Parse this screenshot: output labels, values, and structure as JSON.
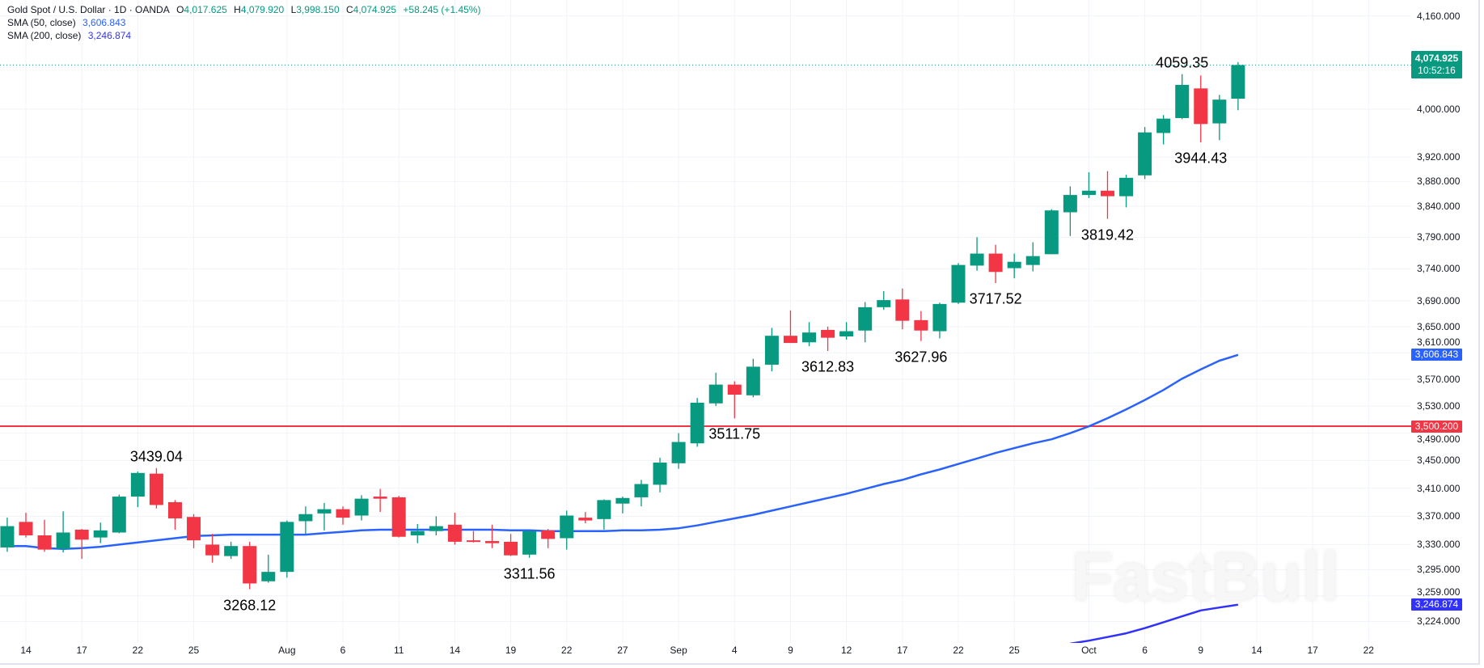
{
  "header": {
    "title": "Gold Spot / U.S. Dollar · 1D · OANDA",
    "open_label": "O",
    "open": "4,017.625",
    "high_label": "H",
    "high": "4,079.920",
    "low_label": "L",
    "low": "3,998.150",
    "close_label": "C",
    "close": "4,074.925",
    "change": "+58.245 (+1.45%)",
    "sma50_label": "SMA (50, close)",
    "sma50_value": "3,606.843",
    "sma200_label": "SMA (200, close)",
    "sma200_value": "3,246.874"
  },
  "watermark": "FastBull",
  "badges": {
    "last_price": "4,074.925",
    "countdown": "10:52:16",
    "sma50": "3,606.843",
    "hline": "3,500.200",
    "sma200": "3,246.874"
  },
  "colors": {
    "up": "#089981",
    "down": "#f23645",
    "sma50": "#2962ff",
    "sma200": "#3131ff",
    "hline": "#f23645",
    "grid": "#f0f3fa"
  },
  "chart_data": {
    "type": "candlestick",
    "y_scale": "log",
    "ylim": [
      3195,
      4188
    ],
    "grid": true,
    "y_ticks": [
      "4,160.000",
      "4,000.000",
      "3,920.000",
      "3,880.000",
      "3,840.000",
      "3,790.000",
      "3,740.000",
      "3,690.000",
      "3,650.000",
      "3,610.000",
      "3,570.000",
      "3,530.000",
      "3,490.000",
      "3,450.000",
      "3,410.000",
      "3,370.000",
      "3,330.000",
      "3,295.000",
      "3,259.000",
      "3,224.000"
    ],
    "x_ticks": [
      {
        "label": "14",
        "date": "2025-07-14"
      },
      {
        "label": "17",
        "date": "2025-07-17"
      },
      {
        "label": "22",
        "date": "2025-07-22"
      },
      {
        "label": "25",
        "date": "2025-07-25"
      },
      {
        "label": "Aug",
        "date": "2025-08-01"
      },
      {
        "label": "6",
        "date": "2025-08-06"
      },
      {
        "label": "11",
        "date": "2025-08-11"
      },
      {
        "label": "14",
        "date": "2025-08-14"
      },
      {
        "label": "19",
        "date": "2025-08-19"
      },
      {
        "label": "22",
        "date": "2025-08-22"
      },
      {
        "label": "27",
        "date": "2025-08-27"
      },
      {
        "label": "Sep",
        "date": "2025-09-01"
      },
      {
        "label": "4",
        "date": "2025-09-04"
      },
      {
        "label": "9",
        "date": "2025-09-09"
      },
      {
        "label": "12",
        "date": "2025-09-12"
      },
      {
        "label": "17",
        "date": "2025-09-17"
      },
      {
        "label": "22",
        "date": "2025-09-22"
      },
      {
        "label": "25",
        "date": "2025-09-25"
      },
      {
        "label": "Oct",
        "date": "2025-10-01"
      },
      {
        "label": "6",
        "date": "2025-10-06"
      },
      {
        "label": "9",
        "date": "2025-10-09"
      },
      {
        "label": "14",
        "date": "2025-10-14"
      },
      {
        "label": "17",
        "date": "2025-10-17"
      },
      {
        "label": "22",
        "date": "2025-10-22"
      }
    ],
    "candles_columns": [
      "date",
      "open",
      "high",
      "low",
      "close"
    ],
    "candles": [
      [
        "2025-07-11",
        3326,
        3368,
        3320,
        3356
      ],
      [
        "2025-07-14",
        3362,
        3375,
        3340,
        3343
      ],
      [
        "2025-07-15",
        3343,
        3365,
        3320,
        3323
      ],
      [
        "2025-07-16",
        3324,
        3377,
        3319,
        3347
      ],
      [
        "2025-07-17",
        3351,
        3352,
        3310,
        3337
      ],
      [
        "2025-07-18",
        3340,
        3361,
        3332,
        3350
      ],
      [
        "2025-07-21",
        3347,
        3401,
        3346,
        3398
      ],
      [
        "2025-07-22",
        3398,
        3434,
        3383,
        3432
      ],
      [
        "2025-07-23",
        3431,
        3439.04,
        3381,
        3386
      ],
      [
        "2025-07-24",
        3390,
        3393,
        3351,
        3367
      ],
      [
        "2025-07-25",
        3369,
        3373,
        3325,
        3336
      ],
      [
        "2025-07-28",
        3330,
        3345,
        3305,
        3315
      ],
      [
        "2025-07-29",
        3314,
        3334,
        3310,
        3328
      ],
      [
        "2025-07-30",
        3328,
        3334,
        3268.12,
        3276
      ],
      [
        "2025-07-31",
        3279,
        3316,
        3277,
        3292
      ],
      [
        "2025-08-01",
        3292,
        3364,
        3284,
        3362
      ],
      [
        "2025-08-04",
        3363,
        3384,
        3345,
        3373
      ],
      [
        "2025-08-05",
        3374,
        3389,
        3350,
        3380
      ],
      [
        "2025-08-06",
        3380,
        3384,
        3358,
        3368
      ],
      [
        "2025-08-07",
        3371,
        3400,
        3364,
        3395
      ],
      [
        "2025-08-08",
        3398,
        3409,
        3376,
        3395
      ],
      [
        "2025-08-11",
        3397,
        3399,
        3340,
        3341
      ],
      [
        "2025-08-12",
        3343,
        3359,
        3332,
        3349
      ],
      [
        "2025-08-13",
        3349,
        3370,
        3343,
        3356
      ],
      [
        "2025-08-14",
        3358,
        3375,
        3330,
        3334
      ],
      [
        "2025-08-15",
        3336,
        3349,
        3333,
        3335
      ],
      [
        "2025-08-18",
        3335,
        3358,
        3325,
        3332
      ],
      [
        "2025-08-19",
        3334,
        3345,
        3314,
        3315
      ],
      [
        "2025-08-20",
        3316,
        3349,
        3311.56,
        3349
      ],
      [
        "2025-08-21",
        3350,
        3352,
        3325,
        3338
      ],
      [
        "2025-08-22",
        3339,
        3378,
        3323,
        3371
      ],
      [
        "2025-08-25",
        3368,
        3376,
        3360,
        3364
      ],
      [
        "2025-08-26",
        3366,
        3394,
        3351,
        3393
      ],
      [
        "2025-08-27",
        3388,
        3398,
        3374,
        3396
      ],
      [
        "2025-08-28",
        3397,
        3422,
        3384,
        3416
      ],
      [
        "2025-08-29",
        3415,
        3454,
        3404,
        3447
      ],
      [
        "2025-09-01",
        3446,
        3490,
        3438,
        3477
      ],
      [
        "2025-09-02",
        3475,
        3542,
        3470,
        3535
      ],
      [
        "2025-09-03",
        3534,
        3580,
        3530,
        3562
      ],
      [
        "2025-09-04",
        3562,
        3567,
        3511.75,
        3547
      ],
      [
        "2025-09-05",
        3546,
        3601,
        3543,
        3589
      ],
      [
        "2025-09-08",
        3592,
        3648,
        3582,
        3636
      ],
      [
        "2025-09-09",
        3636,
        3675,
        3625,
        3625
      ],
      [
        "2025-09-10",
        3626,
        3657,
        3620,
        3641
      ],
      [
        "2025-09-11",
        3645,
        3650,
        3612.83,
        3633
      ],
      [
        "2025-09-12",
        3635,
        3657,
        3630,
        3643
      ],
      [
        "2025-09-15",
        3644,
        3688,
        3626,
        3680
      ],
      [
        "2025-09-16",
        3680,
        3705,
        3676,
        3691
      ],
      [
        "2025-09-17",
        3692,
        3709,
        3646,
        3659
      ],
      [
        "2025-09-18",
        3660,
        3674,
        3627.96,
        3644
      ],
      [
        "2025-09-19",
        3643,
        3687,
        3632,
        3685
      ],
      [
        "2025-09-22",
        3687,
        3749,
        3685,
        3746
      ],
      [
        "2025-09-23",
        3745,
        3790,
        3737,
        3764
      ],
      [
        "2025-09-24",
        3764,
        3778,
        3717.52,
        3735
      ],
      [
        "2025-09-25",
        3741,
        3764,
        3725,
        3751
      ],
      [
        "2025-09-26",
        3746,
        3782,
        3736,
        3760
      ],
      [
        "2025-09-29",
        3763,
        3835,
        3763,
        3833
      ],
      [
        "2025-09-30",
        3830,
        3872,
        3792,
        3858
      ],
      [
        "2025-10-01",
        3858,
        3895,
        3853,
        3865
      ],
      [
        "2025-10-02",
        3865,
        3897,
        3819.42,
        3856
      ],
      [
        "2025-10-03",
        3856,
        3891,
        3838,
        3886
      ],
      [
        "2025-10-06",
        3890,
        3970,
        3884,
        3961
      ],
      [
        "2025-10-07",
        3960,
        3990,
        3941,
        3984
      ],
      [
        "2025-10-08",
        3985,
        4059.35,
        3983,
        4041
      ],
      [
        "2025-10-09",
        4035,
        4057,
        3944.43,
        3975
      ],
      [
        "2025-10-10",
        3976,
        4024,
        3948,
        4016
      ],
      [
        "2025-10-13",
        4017.625,
        4079.92,
        3998.15,
        4074.925
      ]
    ],
    "sma50": [
      3328,
      3328,
      3325,
      3324,
      3325,
      3327,
      3330,
      3333,
      3336,
      3339,
      3342,
      3343,
      3344,
      3344,
      3344,
      3344,
      3344,
      3346,
      3348,
      3350,
      3351,
      3351,
      3351,
      3351,
      3351,
      3351,
      3351,
      3350,
      3350,
      3349,
      3349,
      3349,
      3349,
      3350,
      3350,
      3351,
      3353,
      3357,
      3362,
      3367,
      3372,
      3378,
      3384,
      3390,
      3396,
      3402,
      3409,
      3416,
      3422,
      3430,
      3437,
      3445,
      3453,
      3461,
      3468,
      3475,
      3481,
      3490,
      3500,
      3512,
      3525,
      3539,
      3554,
      3571,
      3585,
      3598,
      3606.843
    ],
    "sma200": [
      [
        "2025-09-30",
        3194
      ],
      [
        "2025-10-01",
        3198
      ],
      [
        "2025-10-02",
        3203
      ],
      [
        "2025-10-03",
        3208
      ],
      [
        "2025-10-06",
        3215
      ],
      [
        "2025-10-07",
        3223
      ],
      [
        "2025-10-08",
        3231
      ],
      [
        "2025-10-09",
        3239
      ],
      [
        "2025-10-10",
        3243
      ],
      [
        "2025-10-13",
        3246.874
      ]
    ],
    "horizontal_line": 3500.2,
    "last_price": 4074.925,
    "annotations": [
      {
        "text": "4059.35",
        "date": "2025-10-08",
        "price": 4059.35,
        "pos": "above"
      },
      {
        "text": "3944.43",
        "date": "2025-10-09",
        "price": 3944.43,
        "pos": "below"
      },
      {
        "text": "3819.42",
        "date": "2025-10-02",
        "price": 3819.42,
        "pos": "below"
      },
      {
        "text": "3717.52",
        "date": "2025-09-24",
        "price": 3717.52,
        "pos": "below"
      },
      {
        "text": "3627.96",
        "date": "2025-09-18",
        "price": 3627.96,
        "pos": "below"
      },
      {
        "text": "3612.83",
        "date": "2025-09-11",
        "price": 3612.83,
        "pos": "below"
      },
      {
        "text": "3511.75",
        "date": "2025-09-04",
        "price": 3511.75,
        "pos": "below"
      },
      {
        "text": "3439.04",
        "date": "2025-07-23",
        "price": 3439.04,
        "pos": "above"
      },
      {
        "text": "3268.12",
        "date": "2025-07-30",
        "price": 3268.12,
        "pos": "below"
      },
      {
        "text": "3311.56",
        "date": "2025-08-20",
        "price": 3311.56,
        "pos": "below"
      }
    ]
  }
}
